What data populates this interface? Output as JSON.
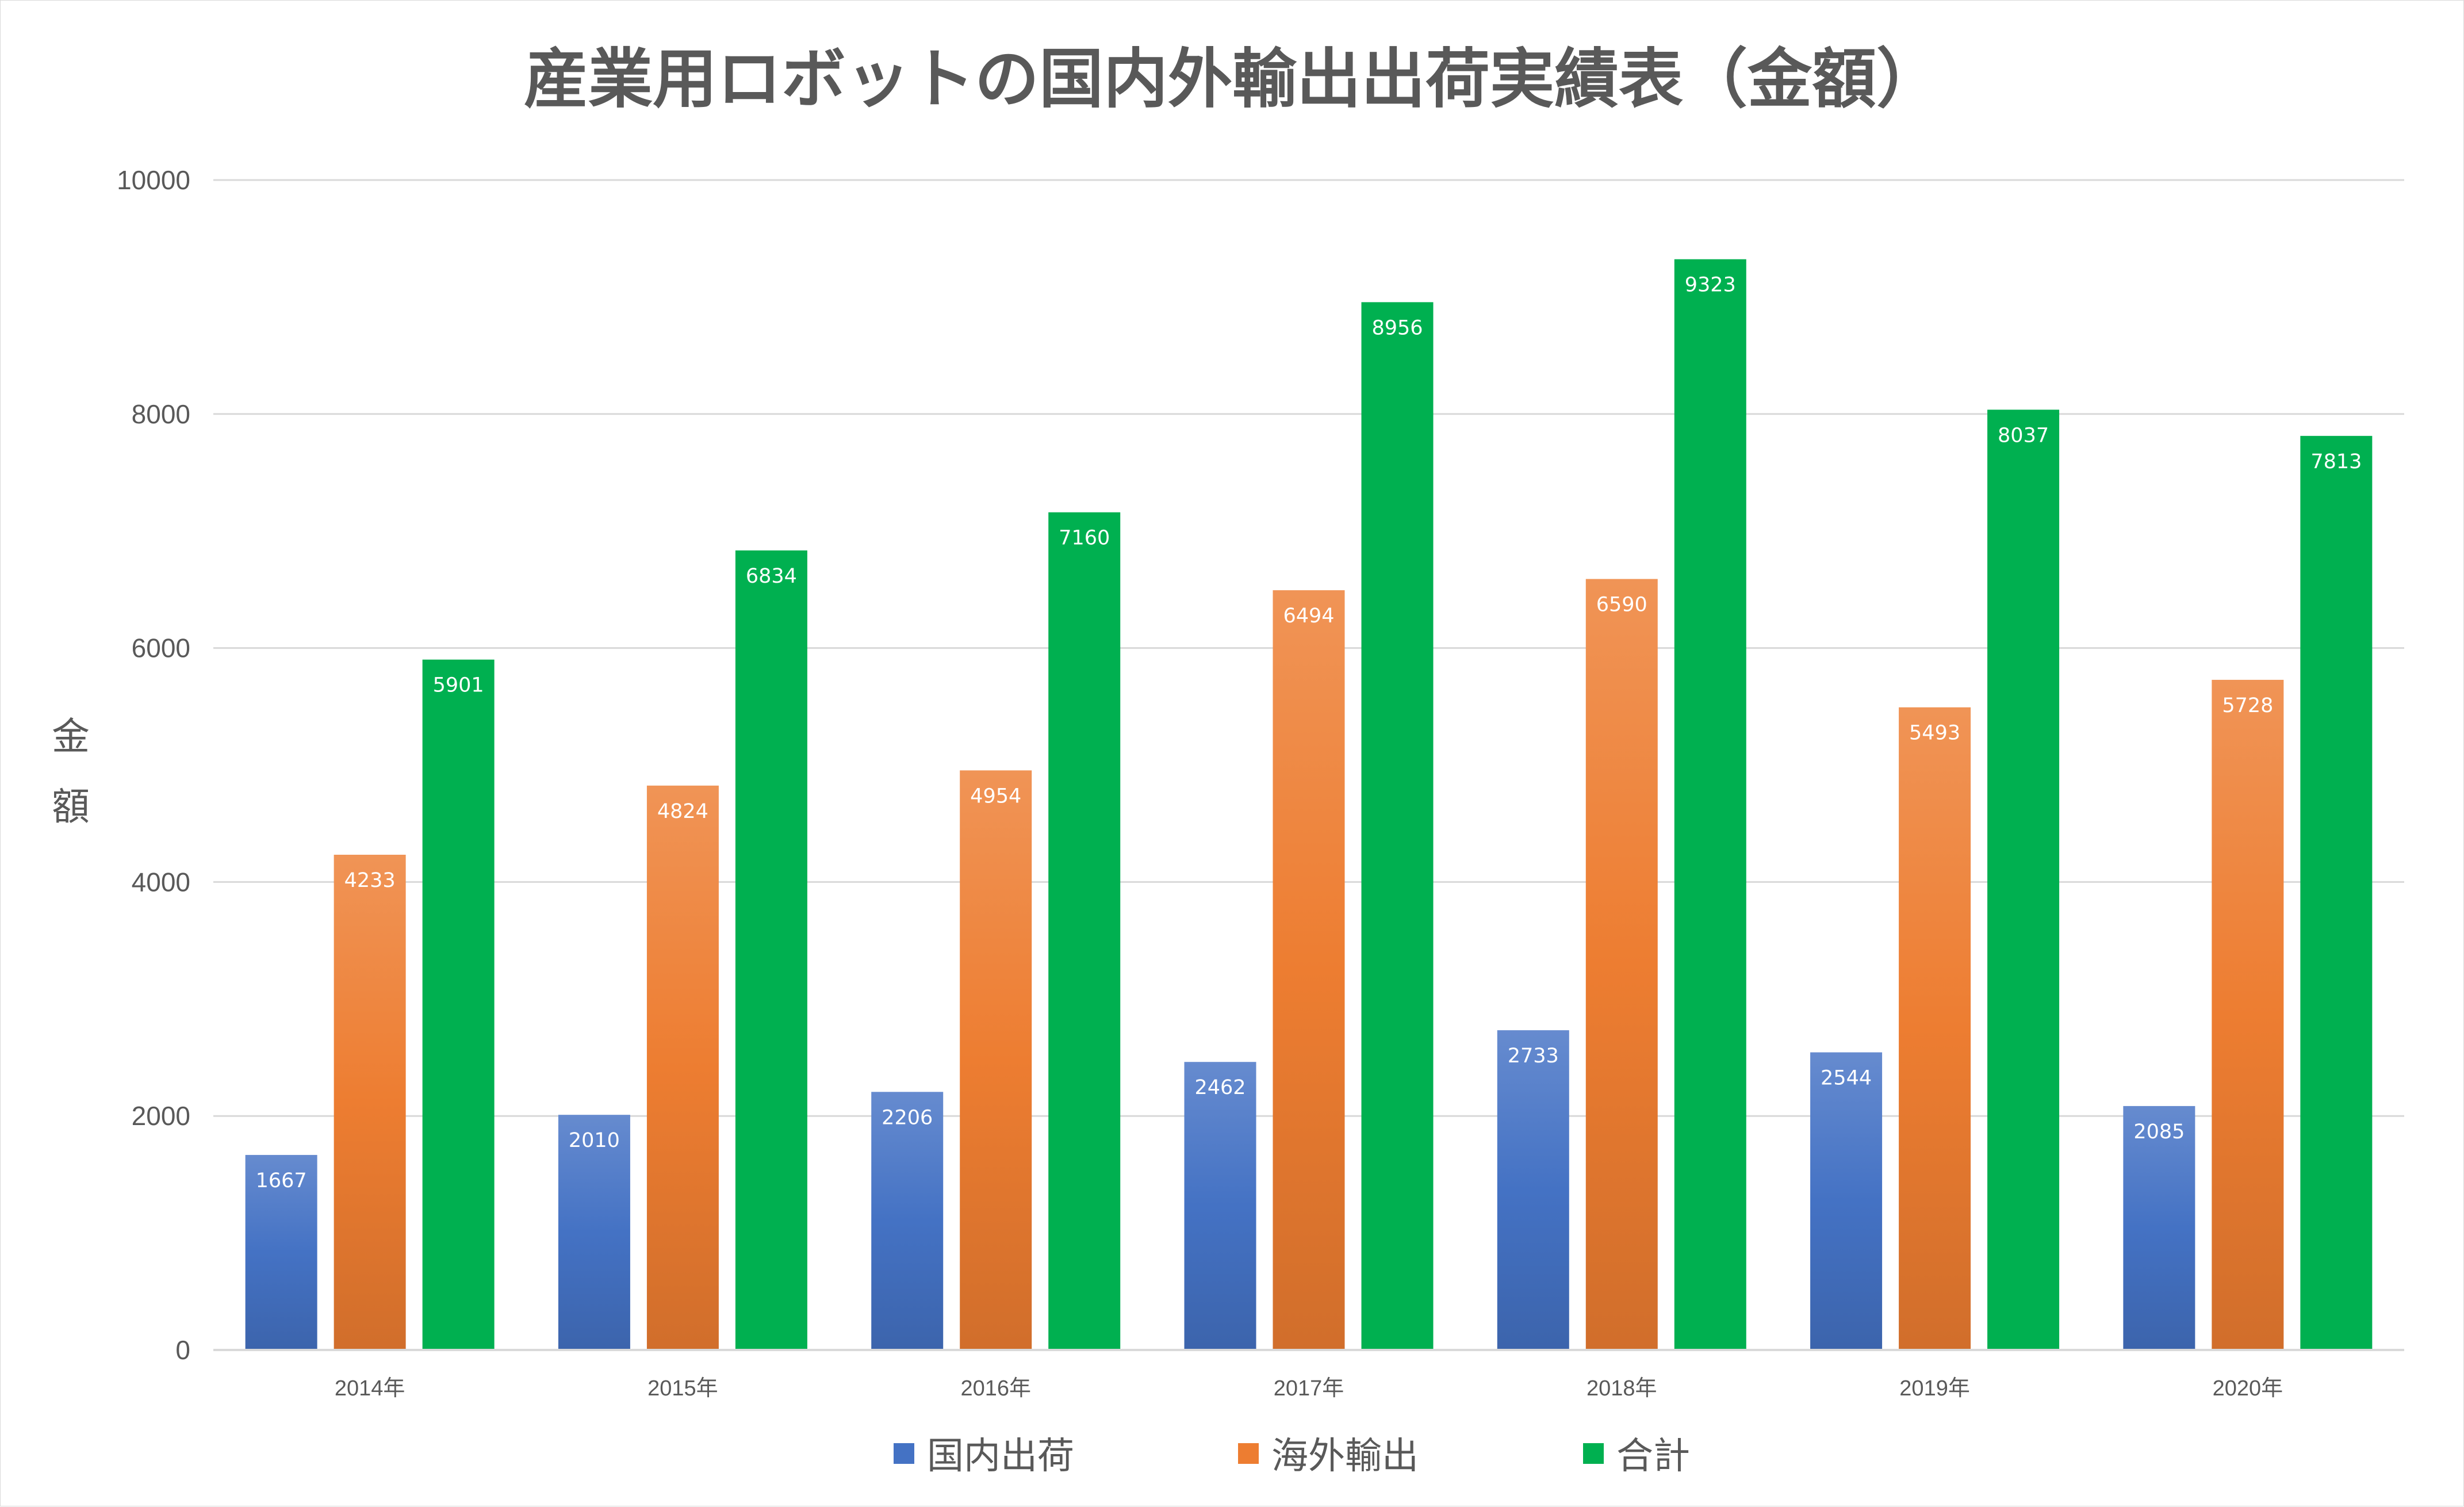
{
  "chart_data": {
    "type": "bar",
    "title": "産業用ロボットの国内外輸出出荷実績表（金額）",
    "xlabel": "",
    "ylabel_chars": [
      "金",
      "額"
    ],
    "categories": [
      "2014年",
      "2015年",
      "2016年",
      "2017年",
      "2018年",
      "2019年",
      "2020年"
    ],
    "series": [
      {
        "name": "国内出荷",
        "color": "#4472c4",
        "values": [
          1667,
          2010,
          2206,
          2462,
          2733,
          2544,
          2085
        ]
      },
      {
        "name": "海外輸出",
        "color": "#ed7d31",
        "values": [
          4233,
          4824,
          4954,
          6494,
          6590,
          5493,
          5728
        ]
      },
      {
        "name": "合計",
        "color": "#00b050",
        "values": [
          5901,
          6834,
          7160,
          8956,
          9323,
          8037,
          7813
        ]
      }
    ],
    "ylim": [
      0,
      10000
    ],
    "yticks": [
      0,
      2000,
      4000,
      6000,
      8000,
      10000
    ],
    "grid": true,
    "legend": "bottom",
    "data_labels": true
  }
}
